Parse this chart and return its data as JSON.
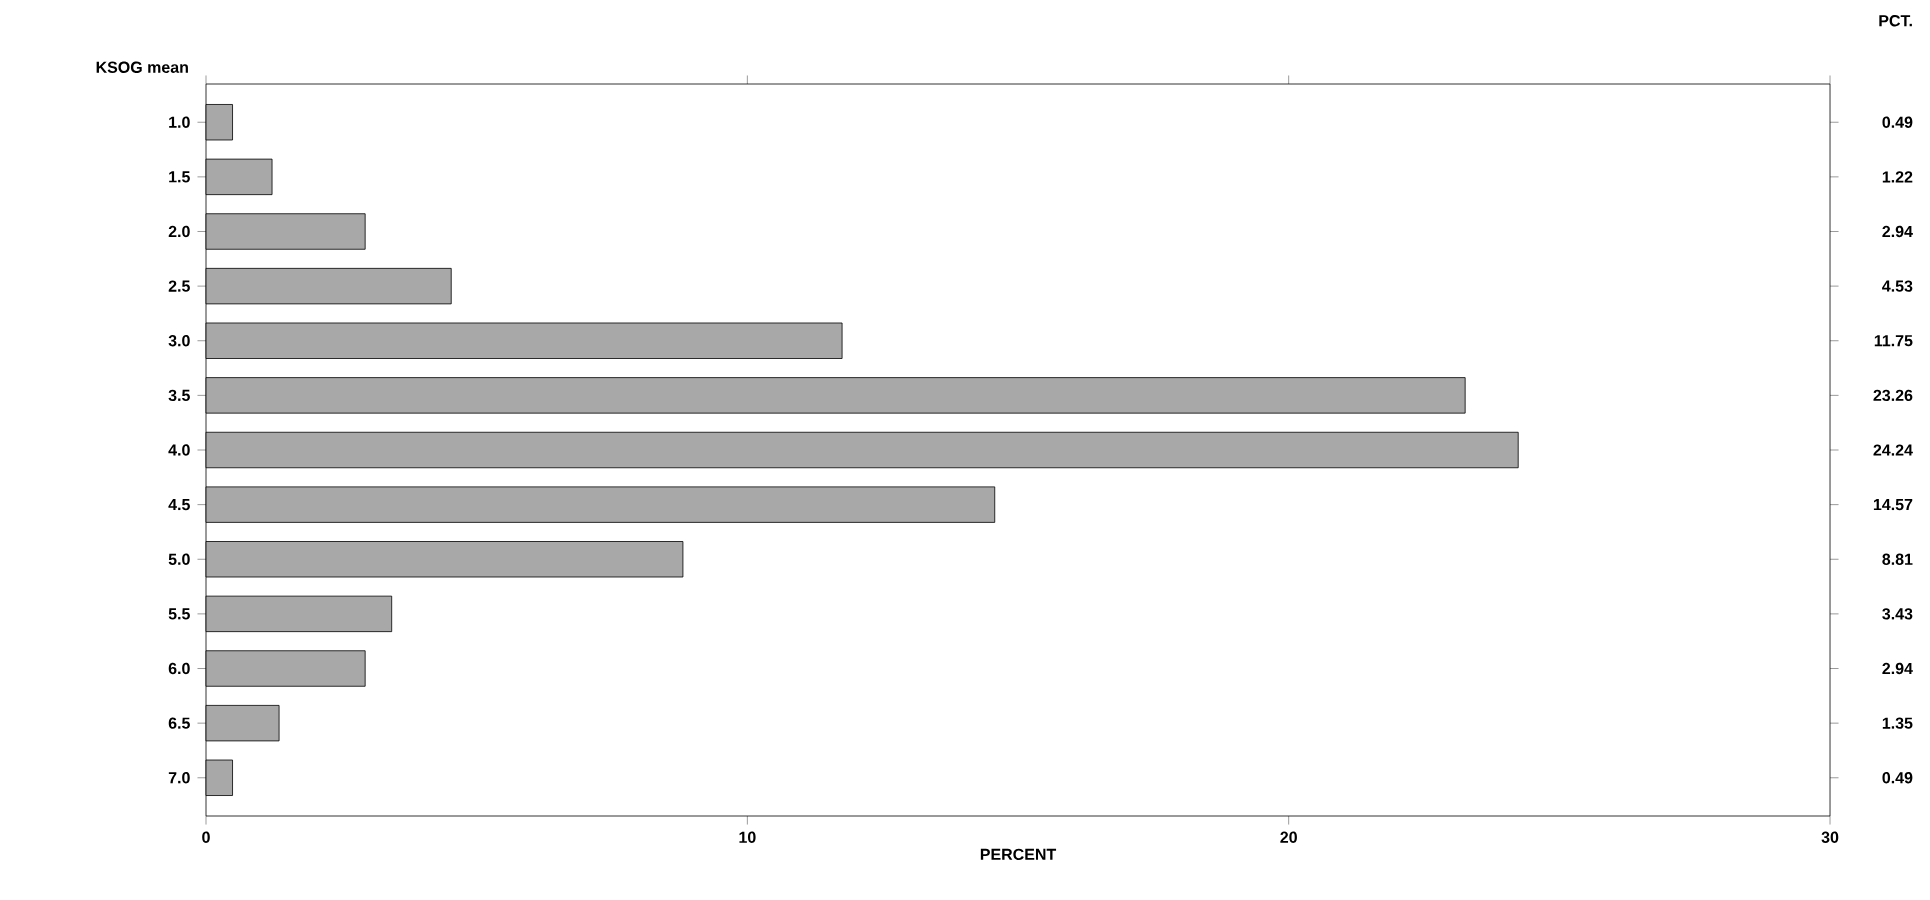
{
  "chart_data": {
    "type": "bar",
    "orientation": "horizontal",
    "xlabel": "PERCENT",
    "ylabel": "KSOG mean",
    "categories": [
      "1.0",
      "1.5",
      "2.0",
      "2.5",
      "3.0",
      "3.5",
      "4.0",
      "4.5",
      "5.0",
      "5.5",
      "6.0",
      "6.5",
      "7.0"
    ],
    "values": [
      0.49,
      1.22,
      2.94,
      4.53,
      11.75,
      23.26,
      24.24,
      14.57,
      8.81,
      3.43,
      2.94,
      1.35,
      0.49
    ],
    "color": "#a8a8a8",
    "xlim": [
      0,
      30
    ],
    "xticks": [
      0,
      10,
      20,
      30
    ],
    "data_labels": true,
    "annotations": [
      "PCT."
    ]
  }
}
